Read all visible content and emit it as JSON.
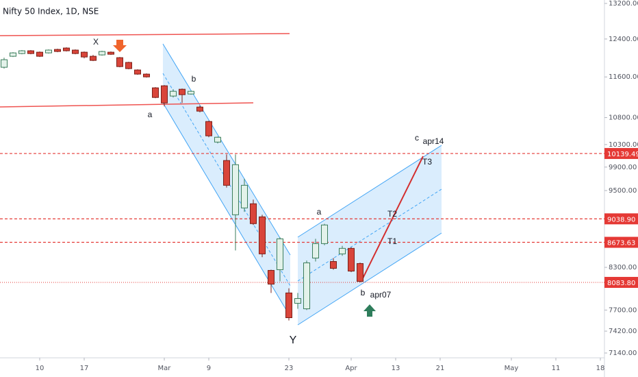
{
  "chart_data": {
    "type": "candlestick",
    "title": "Nifty 50 Index, 1D, NSE",
    "log": true,
    "grid": false,
    "up_color": "#e3f2ea",
    "up_edge": "#3b7d5b",
    "down_color": "#d9453a",
    "down_edge": "#7a1f18",
    "categories": [
      null,
      null,
      null,
      null,
      null,
      null,
      null,
      null,
      null,
      null,
      null,
      null,
      null,
      null,
      null,
      null,
      null,
      null,
      null,
      null,
      null,
      null,
      null,
      null,
      null,
      null,
      null,
      null,
      null,
      null,
      null,
      null,
      null,
      null,
      null,
      null,
      null,
      null,
      null,
      null,
      null
    ],
    "open": [
      11799,
      12029,
      12087,
      12146,
      12116,
      12101,
      12175,
      12205,
      12161,
      12116,
      12029,
      12058,
      12116,
      12000,
      11900,
      11743,
      11658,
      11380,
      11421,
      11217,
      11352,
      11257,
      11002,
      10726,
      10345,
      10015,
      9104,
      9214,
      9282,
      9071,
      8256,
      8266,
      7935,
      7792,
      7717,
      8437,
      8654,
      8386,
      8499,
      8582,
      8356
    ],
    "high": [
      12000,
      12116,
      12161,
      12161,
      12131,
      12175,
      12190,
      12220,
      12175,
      12131,
      12058,
      12146,
      12131,
      12014,
      11914,
      11757,
      11672,
      11394,
      11435,
      11352,
      11366,
      11325,
      11030,
      10740,
      10446,
      10123,
      10123,
      9700,
      9350,
      9104,
      8266,
      8750,
      8000,
      7935,
      8400,
      8727,
      8960,
      8437,
      8620,
      8600,
      8370
    ],
    "low": [
      11771,
      12014,
      12072,
      12072,
      12014,
      12087,
      12116,
      12131,
      12072,
      11985,
      11928,
      12043,
      12058,
      11799,
      11757,
      11644,
      11587,
      11175,
      11015,
      11189,
      11081,
      11244,
      10900,
      10433,
      10320,
      9550,
      8550,
      9150,
      8942,
      8450,
      7935,
      8098,
      7560,
      7717,
      7700,
      8386,
      8630,
      8266,
      8470,
      8230,
      8083
    ],
    "close": [
      11957,
      12101,
      12146,
      12087,
      12029,
      12161,
      12131,
      12146,
      12087,
      12014,
      11942,
      12131,
      12072,
      11813,
      11771,
      11658,
      11601,
      11189,
      11081,
      11311,
      11244,
      11311,
      10923,
      10459,
      10433,
      9588,
      9942,
      9588,
      8963,
      8499,
      8059,
      8727,
      7597,
      7858,
      8366,
      8654,
      8942,
      8286,
      8582,
      8246,
      8098
    ],
    "xlim": [
      -0.46,
      67.46
    ],
    "xticks": [
      {
        "value": 4,
        "label": "10"
      },
      {
        "value": 9,
        "label": "17"
      },
      {
        "value": 18,
        "label": "Mar"
      },
      {
        "value": 23,
        "label": "9"
      },
      {
        "value": 32,
        "label": "23"
      },
      {
        "value": 39,
        "label": "Apr"
      },
      {
        "value": 44,
        "label": "13"
      },
      {
        "value": 49,
        "label": "21"
      },
      {
        "value": 57,
        "label": "May"
      },
      {
        "value": 62,
        "label": "11"
      },
      {
        "value": 67,
        "label": "18"
      }
    ],
    "ylim": [
      7080,
      13280
    ],
    "yticks": [
      {
        "value": 13200,
        "label": "13200.00"
      },
      {
        "value": 12400,
        "label": "12400.00"
      },
      {
        "value": 11600,
        "label": "11600.00"
      },
      {
        "value": 10800,
        "label": "10800.00"
      },
      {
        "value": 10300,
        "label": "10300.00"
      },
      {
        "value": 9900,
        "label": "9900.00"
      },
      {
        "value": 9500,
        "label": "9500.00"
      },
      {
        "value": 8300,
        "label": "8300.00"
      },
      {
        "value": 7700,
        "label": "7700.00"
      },
      {
        "value": 7420,
        "label": "7420.00"
      },
      {
        "value": 7140,
        "label": "7140.00"
      }
    ],
    "price_lines": [
      {
        "value": 10139.49,
        "label": "10139.49"
      },
      {
        "value": 9038.9,
        "label": "9038.90"
      },
      {
        "value": 8673.63,
        "label": "8673.63"
      },
      {
        "value": 8083.8,
        "label": "8083.80"
      }
    ],
    "annotations": [
      "X",
      "a",
      "b",
      "Y",
      "a",
      "b",
      "apr07",
      "c",
      "apr14",
      "T1",
      "T2",
      "T3"
    ]
  }
}
